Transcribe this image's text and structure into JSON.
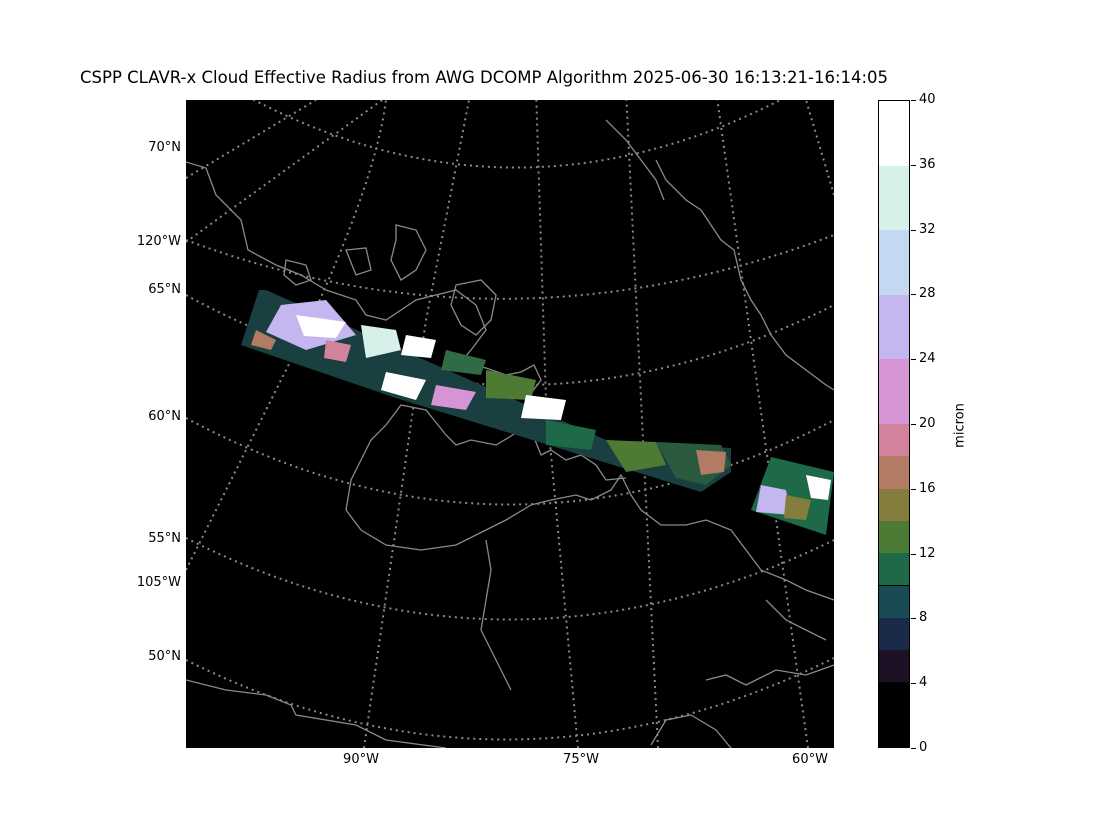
{
  "title": "CSPP CLAVR-x Cloud Effective Radius from AWG DCOMP Algorithm 2025-06-30 16:13:21-16:14:05",
  "map": {
    "lat_labels": [
      "70°N",
      "65°N",
      "60°N",
      "55°N",
      "50°N"
    ],
    "lon_left_labels": [
      "120°W",
      "105°W"
    ],
    "lon_bottom_labels": [
      "90°W",
      "75°W",
      "60°W"
    ],
    "background": "#000000",
    "gridline_color": "#8a8a8a",
    "coastline_color": "#8a8a8a"
  },
  "colorbar": {
    "unit": "micron",
    "ticks": [
      "0",
      "4",
      "8",
      "12",
      "16",
      "20",
      "24",
      "28",
      "32",
      "36",
      "40"
    ],
    "min": 0,
    "max": 40,
    "bins": [
      {
        "from": 0,
        "to": 4,
        "color": "#000000"
      },
      {
        "from": 4,
        "to": 6,
        "color": "#1d1126"
      },
      {
        "from": 6,
        "to": 8,
        "color": "#1c2a4a"
      },
      {
        "from": 8,
        "to": 10,
        "color": "#194b55"
      },
      {
        "from": 10,
        "to": 12,
        "color": "#1e6a48"
      },
      {
        "from": 12,
        "to": 14,
        "color": "#4d7a34"
      },
      {
        "from": 14,
        "to": 16,
        "color": "#857d3d"
      },
      {
        "from": 16,
        "to": 18,
        "color": "#b37b63"
      },
      {
        "from": 18,
        "to": 20,
        "color": "#d3829c"
      },
      {
        "from": 20,
        "to": 24,
        "color": "#d595d5"
      },
      {
        "from": 24,
        "to": 28,
        "color": "#c6b6ef"
      },
      {
        "from": 28,
        "to": 32,
        "color": "#c4d8f2"
      },
      {
        "from": 32,
        "to": 36,
        "color": "#d8f0ea"
      },
      {
        "from": 36,
        "to": 40,
        "color": "#ffffff"
      }
    ]
  }
}
